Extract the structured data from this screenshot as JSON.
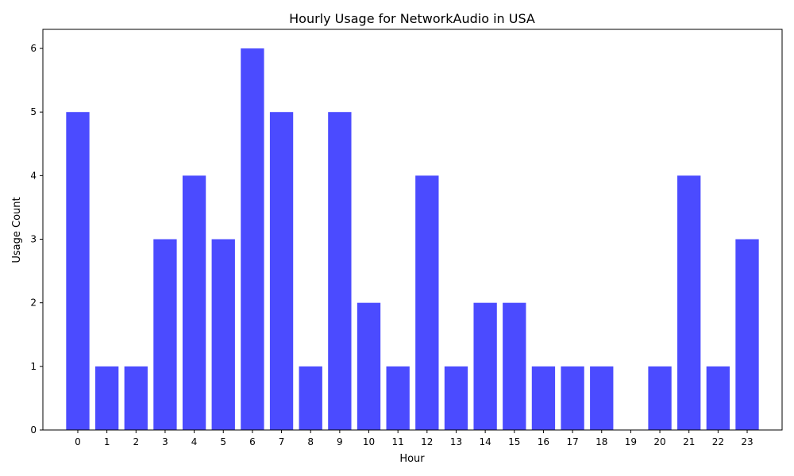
{
  "chart_data": {
    "type": "bar",
    "title": "Hourly Usage for NetworkAudio in USA",
    "xlabel": "Hour",
    "ylabel": "Usage Count",
    "categories": [
      "0",
      "1",
      "2",
      "3",
      "4",
      "5",
      "6",
      "7",
      "8",
      "9",
      "10",
      "11",
      "12",
      "13",
      "14",
      "15",
      "16",
      "17",
      "18",
      "19",
      "20",
      "21",
      "22",
      "23"
    ],
    "values": [
      5,
      1,
      1,
      3,
      4,
      3,
      6,
      5,
      1,
      5,
      2,
      1,
      4,
      1,
      2,
      2,
      1,
      1,
      1,
      0,
      1,
      4,
      1,
      3
    ],
    "ylim": [
      0,
      6.3
    ],
    "yticks": [
      "0",
      "1",
      "2",
      "3",
      "4",
      "5",
      "6"
    ],
    "bar_color": "#4b4bff",
    "grid": false,
    "legend": "none"
  }
}
